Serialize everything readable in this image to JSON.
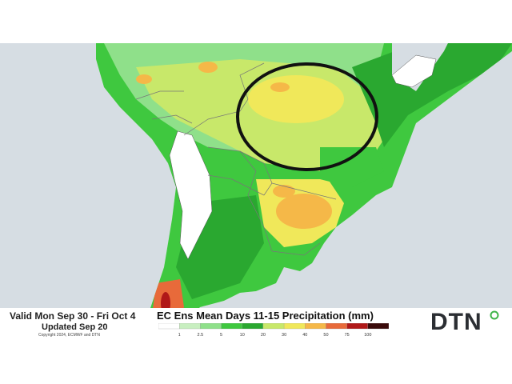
{
  "footer": {
    "valid": "Valid Mon Sep 30 - Fri Oct 4",
    "updated": "Updated Sep 20",
    "copyright": "Copyright 2024, ECMWF and DTN"
  },
  "title": "EC Ens Mean Days 11-15 Precipitation (mm)",
  "legend": {
    "ticks": [
      "1",
      "2.5",
      "5",
      "10",
      "20",
      "30",
      "40",
      "50",
      "75",
      "100"
    ],
    "colors": [
      "#ffffff",
      "#c8efc0",
      "#8fe08a",
      "#3fc83f",
      "#2aa830",
      "#c8e86a",
      "#f0e85a",
      "#f5b848",
      "#e86a3a",
      "#b01818",
      "#3a0a0a"
    ]
  },
  "logo": "DTN",
  "colors": {
    "ocean": "#d6dde3",
    "land_outside": "#ffffff",
    "brand": "#2b2e33",
    "logo_accent": "#3fb54a"
  }
}
